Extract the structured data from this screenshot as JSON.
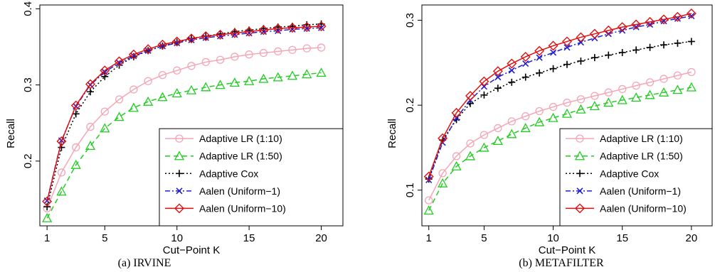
{
  "chart_data": [
    {
      "type": "line",
      "caption": "(a)  IRVINE",
      "xlabel": "Cut−Point K",
      "ylabel": "Recall",
      "xlim": [
        0.5,
        21.5
      ],
      "ylim": [
        0.115,
        0.405
      ],
      "xticks": [
        1,
        5,
        10,
        15,
        20
      ],
      "yticks": [
        0.2,
        0.3,
        0.4
      ],
      "ytick_labels": [
        "0.2",
        "0.3",
        "0.4"
      ],
      "legend_position": "bottom-right",
      "x": [
        1,
        2,
        3,
        4,
        5,
        6,
        7,
        8,
        9,
        10,
        11,
        12,
        13,
        14,
        15,
        16,
        17,
        18,
        19,
        20
      ],
      "series": [
        {
          "name": "Adaptive LR (1:10)",
          "color": "#f4a6b6",
          "dash": "",
          "marker": "circle",
          "values": [
            0.138,
            0.185,
            0.218,
            0.245,
            0.265,
            0.281,
            0.294,
            0.305,
            0.313,
            0.319,
            0.325,
            0.33,
            0.333,
            0.337,
            0.34,
            0.342,
            0.344,
            0.346,
            0.348,
            0.349
          ]
        },
        {
          "name": "Adaptive LR (1:50)",
          "color": "#22cc22",
          "dash": "7,5",
          "marker": "triangle",
          "values": [
            0.125,
            0.16,
            0.195,
            0.22,
            0.243,
            0.258,
            0.27,
            0.278,
            0.284,
            0.289,
            0.293,
            0.297,
            0.3,
            0.303,
            0.305,
            0.308,
            0.31,
            0.312,
            0.314,
            0.316
          ]
        },
        {
          "name": "Adaptive Cox",
          "color": "#000000",
          "dash": "2,3",
          "marker": "plus",
          "values": [
            0.14,
            0.218,
            0.262,
            0.291,
            0.311,
            0.326,
            0.337,
            0.345,
            0.351,
            0.356,
            0.361,
            0.364,
            0.367,
            0.37,
            0.372,
            0.374,
            0.376,
            0.377,
            0.379,
            0.38
          ]
        },
        {
          "name": "Aalen (Uniform−1)",
          "color": "#1f1fd0",
          "dash": "7,3,2,3",
          "marker": "x",
          "values": [
            0.148,
            0.227,
            0.272,
            0.3,
            0.317,
            0.329,
            0.338,
            0.345,
            0.351,
            0.355,
            0.359,
            0.362,
            0.364,
            0.366,
            0.368,
            0.37,
            0.371,
            0.373,
            0.374,
            0.375
          ]
        },
        {
          "name": "Aalen (Uniform−10)",
          "color": "#e01010",
          "dash": "",
          "marker": "diamond",
          "values": [
            0.147,
            0.226,
            0.273,
            0.301,
            0.319,
            0.331,
            0.34,
            0.347,
            0.353,
            0.357,
            0.361,
            0.364,
            0.366,
            0.368,
            0.37,
            0.372,
            0.374,
            0.375,
            0.376,
            0.377
          ]
        }
      ]
    },
    {
      "type": "line",
      "caption": "(b)  METAFILTER",
      "xlabel": "Cut−Point K",
      "ylabel": "Recall",
      "xlim": [
        0.5,
        21.5
      ],
      "ylim": [
        0.058,
        0.318
      ],
      "xticks": [
        1,
        5,
        10,
        15,
        20
      ],
      "yticks": [
        0.1,
        0.2,
        0.3
      ],
      "ytick_labels": [
        "0.1",
        "0.2",
        "0.3"
      ],
      "legend_position": "bottom-right",
      "x": [
        1,
        2,
        3,
        4,
        5,
        6,
        7,
        8,
        9,
        10,
        11,
        12,
        13,
        14,
        15,
        16,
        17,
        18,
        19,
        20
      ],
      "series": [
        {
          "name": "Adaptive LR (1:10)",
          "color": "#f4a6b6",
          "dash": "",
          "marker": "circle",
          "values": [
            0.088,
            0.12,
            0.14,
            0.155,
            0.165,
            0.173,
            0.181,
            0.187,
            0.193,
            0.198,
            0.203,
            0.207,
            0.211,
            0.215,
            0.219,
            0.223,
            0.227,
            0.231,
            0.235,
            0.239
          ]
        },
        {
          "name": "Adaptive LR (1:50)",
          "color": "#22cc22",
          "dash": "7,5",
          "marker": "triangle",
          "values": [
            0.076,
            0.108,
            0.128,
            0.14,
            0.15,
            0.158,
            0.166,
            0.173,
            0.18,
            0.185,
            0.19,
            0.195,
            0.199,
            0.203,
            0.206,
            0.209,
            0.212,
            0.215,
            0.218,
            0.221
          ]
        },
        {
          "name": "Adaptive Cox",
          "color": "#000000",
          "dash": "2,3",
          "marker": "plus",
          "values": [
            0.113,
            0.159,
            0.183,
            0.202,
            0.212,
            0.22,
            0.227,
            0.233,
            0.238,
            0.243,
            0.248,
            0.252,
            0.256,
            0.259,
            0.262,
            0.265,
            0.268,
            0.271,
            0.273,
            0.275
          ]
        },
        {
          "name": "Aalen (Uniform−1)",
          "color": "#1f1fd0",
          "dash": "7,3,2,3",
          "marker": "x",
          "values": [
            0.112,
            0.156,
            0.185,
            0.206,
            0.222,
            0.233,
            0.241,
            0.249,
            0.256,
            0.262,
            0.268,
            0.274,
            0.279,
            0.284,
            0.288,
            0.292,
            0.295,
            0.299,
            0.302,
            0.305
          ]
        },
        {
          "name": "Aalen (Uniform−10)",
          "color": "#e01010",
          "dash": "",
          "marker": "diamond",
          "values": [
            0.116,
            0.161,
            0.191,
            0.211,
            0.228,
            0.24,
            0.249,
            0.257,
            0.264,
            0.27,
            0.275,
            0.28,
            0.284,
            0.288,
            0.292,
            0.295,
            0.298,
            0.301,
            0.304,
            0.308
          ]
        }
      ]
    }
  ]
}
